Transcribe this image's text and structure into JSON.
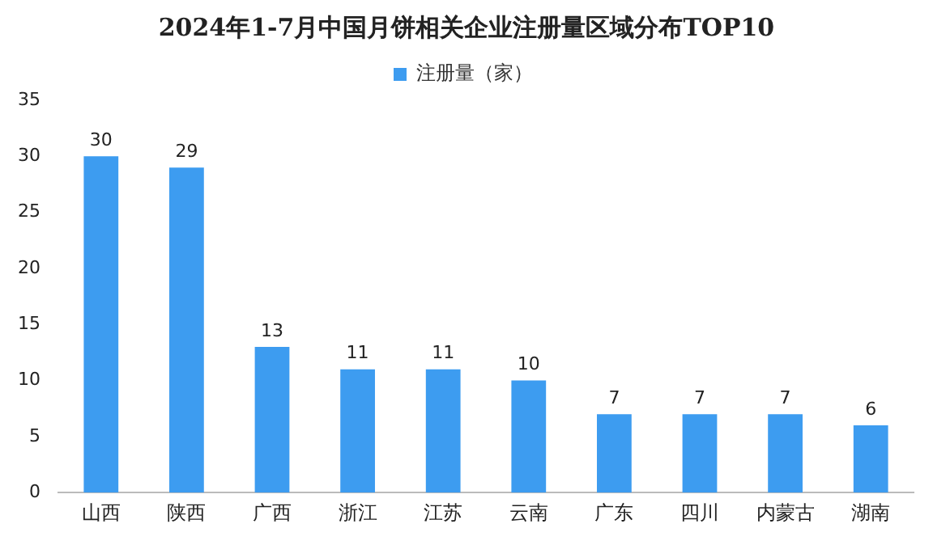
{
  "chart_data": {
    "type": "bar",
    "title": "2024年1-7月中国月饼相关企业注册量区域分布TOP10",
    "categories": [
      "山西",
      "陕西",
      "广西",
      "浙江",
      "江苏",
      "云南",
      "广东",
      "四川",
      "内蒙古",
      "湖南"
    ],
    "series": [
      {
        "name": "注册量（家）",
        "color": "#3d9cf0",
        "values": [
          30,
          29,
          13,
          11,
          11,
          10,
          7,
          7,
          7,
          6
        ]
      }
    ],
    "ylim": [
      0,
      35
    ],
    "yticks": [
      0,
      5,
      10,
      15,
      20,
      25,
      30,
      35
    ],
    "grid": false,
    "legend": "top",
    "data_labels": true
  }
}
